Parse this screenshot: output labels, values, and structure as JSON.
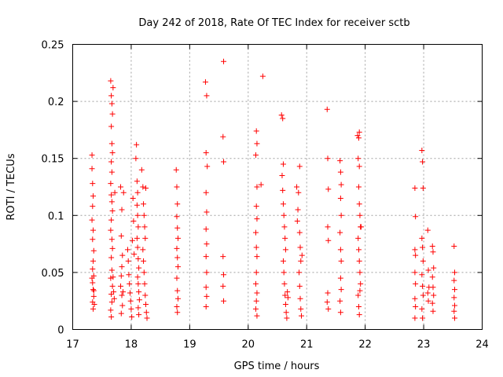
{
  "chart_data": {
    "type": "scatter",
    "title": "Day 242 of 2018, Rate Of TEC Index for receiver sctb",
    "xlabel": "GPS time / hours",
    "ylabel": "ROTI / TECUs",
    "xlim": [
      17,
      24
    ],
    "ylim": [
      0,
      0.25
    ],
    "xticks": [
      "17",
      "18",
      "19",
      "20",
      "21",
      "22",
      "23",
      "24"
    ],
    "yticks": [
      "0",
      "0.05",
      "0.1",
      "0.15",
      "0.2",
      "0.25"
    ],
    "grid": true,
    "marker": "+",
    "color": "#ff0000",
    "series": [
      {
        "name": "ROTI",
        "points": [
          [
            17.33,
            0.153
          ],
          [
            17.33,
            0.141
          ],
          [
            17.34,
            0.128
          ],
          [
            17.35,
            0.117
          ],
          [
            17.34,
            0.108
          ],
          [
            17.33,
            0.096
          ],
          [
            17.35,
            0.087
          ],
          [
            17.34,
            0.079
          ],
          [
            17.36,
            0.069
          ],
          [
            17.35,
            0.06
          ],
          [
            17.34,
            0.053
          ],
          [
            17.36,
            0.047
          ],
          [
            17.34,
            0.041
          ],
          [
            17.35,
            0.035
          ],
          [
            17.36,
            0.029
          ],
          [
            17.34,
            0.024
          ],
          [
            17.35,
            0.018
          ],
          [
            17.37,
            0.022
          ],
          [
            17.36,
            0.034
          ],
          [
            17.33,
            0.045
          ],
          [
            17.65,
            0.218
          ],
          [
            17.66,
            0.205
          ],
          [
            17.67,
            0.198
          ],
          [
            17.68,
            0.189
          ],
          [
            17.69,
            0.212
          ],
          [
            17.66,
            0.178
          ],
          [
            17.67,
            0.163
          ],
          [
            17.68,
            0.155
          ],
          [
            17.66,
            0.147
          ],
          [
            17.67,
            0.138
          ],
          [
            17.65,
            0.128
          ],
          [
            17.66,
            0.118
          ],
          [
            17.67,
            0.112
          ],
          [
            17.68,
            0.104
          ],
          [
            17.66,
            0.096
          ],
          [
            17.65,
            0.087
          ],
          [
            17.67,
            0.079
          ],
          [
            17.68,
            0.071
          ],
          [
            17.66,
            0.063
          ],
          [
            17.67,
            0.052
          ],
          [
            17.65,
            0.045
          ],
          [
            17.68,
            0.038
          ],
          [
            17.66,
            0.031
          ],
          [
            17.67,
            0.024
          ],
          [
            17.65,
            0.017
          ],
          [
            17.66,
            0.011
          ],
          [
            17.69,
            0.046
          ],
          [
            17.7,
            0.033
          ],
          [
            17.71,
            0.027
          ],
          [
            17.72,
            0.12
          ],
          [
            17.82,
            0.125
          ],
          [
            17.84,
            0.105
          ],
          [
            17.83,
            0.082
          ],
          [
            17.85,
            0.065
          ],
          [
            17.84,
            0.055
          ],
          [
            17.83,
            0.047
          ],
          [
            17.82,
            0.038
          ],
          [
            17.84,
            0.03
          ],
          [
            17.85,
            0.021
          ],
          [
            17.83,
            0.014
          ],
          [
            17.86,
            0.033
          ],
          [
            17.87,
            0.12
          ],
          [
            17.94,
            0.07
          ],
          [
            17.95,
            0.06
          ],
          [
            17.96,
            0.048
          ],
          [
            17.97,
            0.04
          ],
          [
            17.98,
            0.032
          ],
          [
            17.99,
            0.025
          ],
          [
            18.0,
            0.018
          ],
          [
            18.01,
            0.011
          ],
          [
            18.02,
            0.078
          ],
          [
            18.03,
            0.115
          ],
          [
            18.04,
            0.095
          ],
          [
            18.05,
            0.066
          ],
          [
            18.08,
            0.15
          ],
          [
            18.09,
            0.162
          ],
          [
            18.1,
            0.13
          ],
          [
            18.11,
            0.12
          ],
          [
            18.1,
            0.109
          ],
          [
            18.11,
            0.1
          ],
          [
            18.12,
            0.09
          ],
          [
            18.1,
            0.08
          ],
          [
            18.11,
            0.072
          ],
          [
            18.12,
            0.062
          ],
          [
            18.13,
            0.054
          ],
          [
            18.11,
            0.046
          ],
          [
            18.12,
            0.04
          ],
          [
            18.13,
            0.033
          ],
          [
            18.14,
            0.026
          ],
          [
            18.12,
            0.019
          ],
          [
            18.13,
            0.013
          ],
          [
            18.18,
            0.14
          ],
          [
            18.2,
            0.125
          ],
          [
            18.21,
            0.11
          ],
          [
            18.22,
            0.1
          ],
          [
            18.23,
            0.09
          ],
          [
            18.24,
            0.08
          ],
          [
            18.2,
            0.07
          ],
          [
            18.21,
            0.06
          ],
          [
            18.22,
            0.05
          ],
          [
            18.23,
            0.04
          ],
          [
            18.24,
            0.03
          ],
          [
            18.25,
            0.022
          ],
          [
            18.26,
            0.015
          ],
          [
            18.27,
            0.01
          ],
          [
            18.25,
            0.124
          ],
          [
            18.77,
            0.14
          ],
          [
            18.78,
            0.125
          ],
          [
            18.79,
            0.11
          ],
          [
            18.78,
            0.099
          ],
          [
            18.79,
            0.089
          ],
          [
            18.8,
            0.08
          ],
          [
            18.78,
            0.071
          ],
          [
            18.79,
            0.063
          ],
          [
            18.8,
            0.055
          ],
          [
            18.78,
            0.045
          ],
          [
            18.79,
            0.034
          ],
          [
            18.8,
            0.027
          ],
          [
            18.78,
            0.02
          ],
          [
            18.79,
            0.015
          ],
          [
            19.27,
            0.217
          ],
          [
            19.29,
            0.205
          ],
          [
            19.28,
            0.155
          ],
          [
            19.3,
            0.143
          ],
          [
            19.28,
            0.12
          ],
          [
            19.29,
            0.103
          ],
          [
            19.28,
            0.088
          ],
          [
            19.29,
            0.075
          ],
          [
            19.28,
            0.064
          ],
          [
            19.29,
            0.05
          ],
          [
            19.28,
            0.037
          ],
          [
            19.29,
            0.029
          ],
          [
            19.28,
            0.02
          ],
          [
            19.58,
            0.235
          ],
          [
            19.57,
            0.169
          ],
          [
            19.58,
            0.147
          ],
          [
            19.57,
            0.064
          ],
          [
            19.58,
            0.048
          ],
          [
            19.57,
            0.038
          ],
          [
            19.58,
            0.025
          ],
          [
            20.14,
            0.174
          ],
          [
            20.15,
            0.163
          ],
          [
            20.13,
            0.153
          ],
          [
            20.15,
            0.125
          ],
          [
            20.14,
            0.108
          ],
          [
            20.15,
            0.097
          ],
          [
            20.13,
            0.085
          ],
          [
            20.14,
            0.072
          ],
          [
            20.15,
            0.064
          ],
          [
            20.14,
            0.05
          ],
          [
            20.13,
            0.04
          ],
          [
            20.15,
            0.032
          ],
          [
            20.14,
            0.025
          ],
          [
            20.13,
            0.018
          ],
          [
            20.15,
            0.012
          ],
          [
            20.25,
            0.222
          ],
          [
            20.22,
            0.127
          ],
          [
            20.57,
            0.188
          ],
          [
            20.59,
            0.185
          ],
          [
            20.6,
            0.145
          ],
          [
            20.58,
            0.135
          ],
          [
            20.59,
            0.122
          ],
          [
            20.6,
            0.11
          ],
          [
            20.61,
            0.1
          ],
          [
            20.62,
            0.09
          ],
          [
            20.63,
            0.08
          ],
          [
            20.64,
            0.07
          ],
          [
            20.6,
            0.06
          ],
          [
            20.61,
            0.05
          ],
          [
            20.62,
            0.04
          ],
          [
            20.63,
            0.03
          ],
          [
            20.64,
            0.022
          ],
          [
            20.65,
            0.015
          ],
          [
            20.66,
            0.01
          ],
          [
            20.67,
            0.033
          ],
          [
            20.68,
            0.028
          ],
          [
            20.83,
            0.125
          ],
          [
            20.85,
            0.105
          ],
          [
            20.84,
            0.095
          ],
          [
            20.86,
            0.12
          ],
          [
            20.88,
            0.085
          ],
          [
            20.89,
            0.072
          ],
          [
            20.9,
            0.06
          ],
          [
            20.87,
            0.05
          ],
          [
            20.88,
            0.038
          ],
          [
            20.89,
            0.027
          ],
          [
            20.9,
            0.018
          ],
          [
            20.91,
            0.012
          ],
          [
            20.88,
            0.143
          ],
          [
            20.92,
            0.065
          ],
          [
            21.35,
            0.193
          ],
          [
            21.36,
            0.15
          ],
          [
            21.37,
            0.123
          ],
          [
            21.36,
            0.09
          ],
          [
            21.37,
            0.078
          ],
          [
            21.36,
            0.032
          ],
          [
            21.35,
            0.024
          ],
          [
            21.37,
            0.018
          ],
          [
            21.57,
            0.148
          ],
          [
            21.58,
            0.138
          ],
          [
            21.59,
            0.127
          ],
          [
            21.58,
            0.115
          ],
          [
            21.59,
            0.1
          ],
          [
            21.57,
            0.085
          ],
          [
            21.58,
            0.07
          ],
          [
            21.59,
            0.06
          ],
          [
            21.58,
            0.045
          ],
          [
            21.59,
            0.035
          ],
          [
            21.57,
            0.025
          ],
          [
            21.58,
            0.015
          ],
          [
            21.87,
            0.17
          ],
          [
            21.89,
            0.168
          ],
          [
            21.9,
            0.173
          ],
          [
            21.88,
            0.15
          ],
          [
            21.9,
            0.143
          ],
          [
            21.89,
            0.125
          ],
          [
            21.9,
            0.11
          ],
          [
            21.91,
            0.1
          ],
          [
            21.92,
            0.09
          ],
          [
            21.88,
            0.08
          ],
          [
            21.89,
            0.07
          ],
          [
            21.9,
            0.06
          ],
          [
            21.91,
            0.05
          ],
          [
            21.92,
            0.04
          ],
          [
            21.88,
            0.03
          ],
          [
            21.89,
            0.02
          ],
          [
            21.9,
            0.013
          ],
          [
            21.91,
            0.034
          ],
          [
            21.93,
            0.09
          ],
          [
            22.85,
            0.124
          ],
          [
            22.86,
            0.099
          ],
          [
            22.85,
            0.07
          ],
          [
            22.86,
            0.065
          ],
          [
            22.85,
            0.05
          ],
          [
            22.86,
            0.04
          ],
          [
            22.85,
            0.027
          ],
          [
            22.86,
            0.02
          ],
          [
            22.85,
            0.01
          ],
          [
            22.97,
            0.157
          ],
          [
            22.98,
            0.147
          ],
          [
            22.99,
            0.124
          ],
          [
            22.97,
            0.08
          ],
          [
            22.98,
            0.072
          ],
          [
            22.99,
            0.06
          ],
          [
            22.97,
            0.048
          ],
          [
            22.98,
            0.038
          ],
          [
            22.99,
            0.03
          ],
          [
            22.97,
            0.018
          ],
          [
            22.98,
            0.01
          ],
          [
            23.07,
            0.087
          ],
          [
            23.08,
            0.052
          ],
          [
            23.09,
            0.037
          ],
          [
            23.07,
            0.032
          ],
          [
            23.08,
            0.025
          ],
          [
            23.15,
            0.073
          ],
          [
            23.16,
            0.068
          ],
          [
            23.17,
            0.054
          ],
          [
            23.15,
            0.046
          ],
          [
            23.16,
            0.037
          ],
          [
            23.17,
            0.03
          ],
          [
            23.15,
            0.023
          ],
          [
            23.16,
            0.016
          ],
          [
            23.52,
            0.073
          ],
          [
            23.53,
            0.05
          ],
          [
            23.52,
            0.043
          ],
          [
            23.53,
            0.035
          ],
          [
            23.52,
            0.028
          ],
          [
            23.53,
            0.021
          ],
          [
            23.52,
            0.016
          ],
          [
            23.53,
            0.01
          ]
        ]
      }
    ]
  }
}
